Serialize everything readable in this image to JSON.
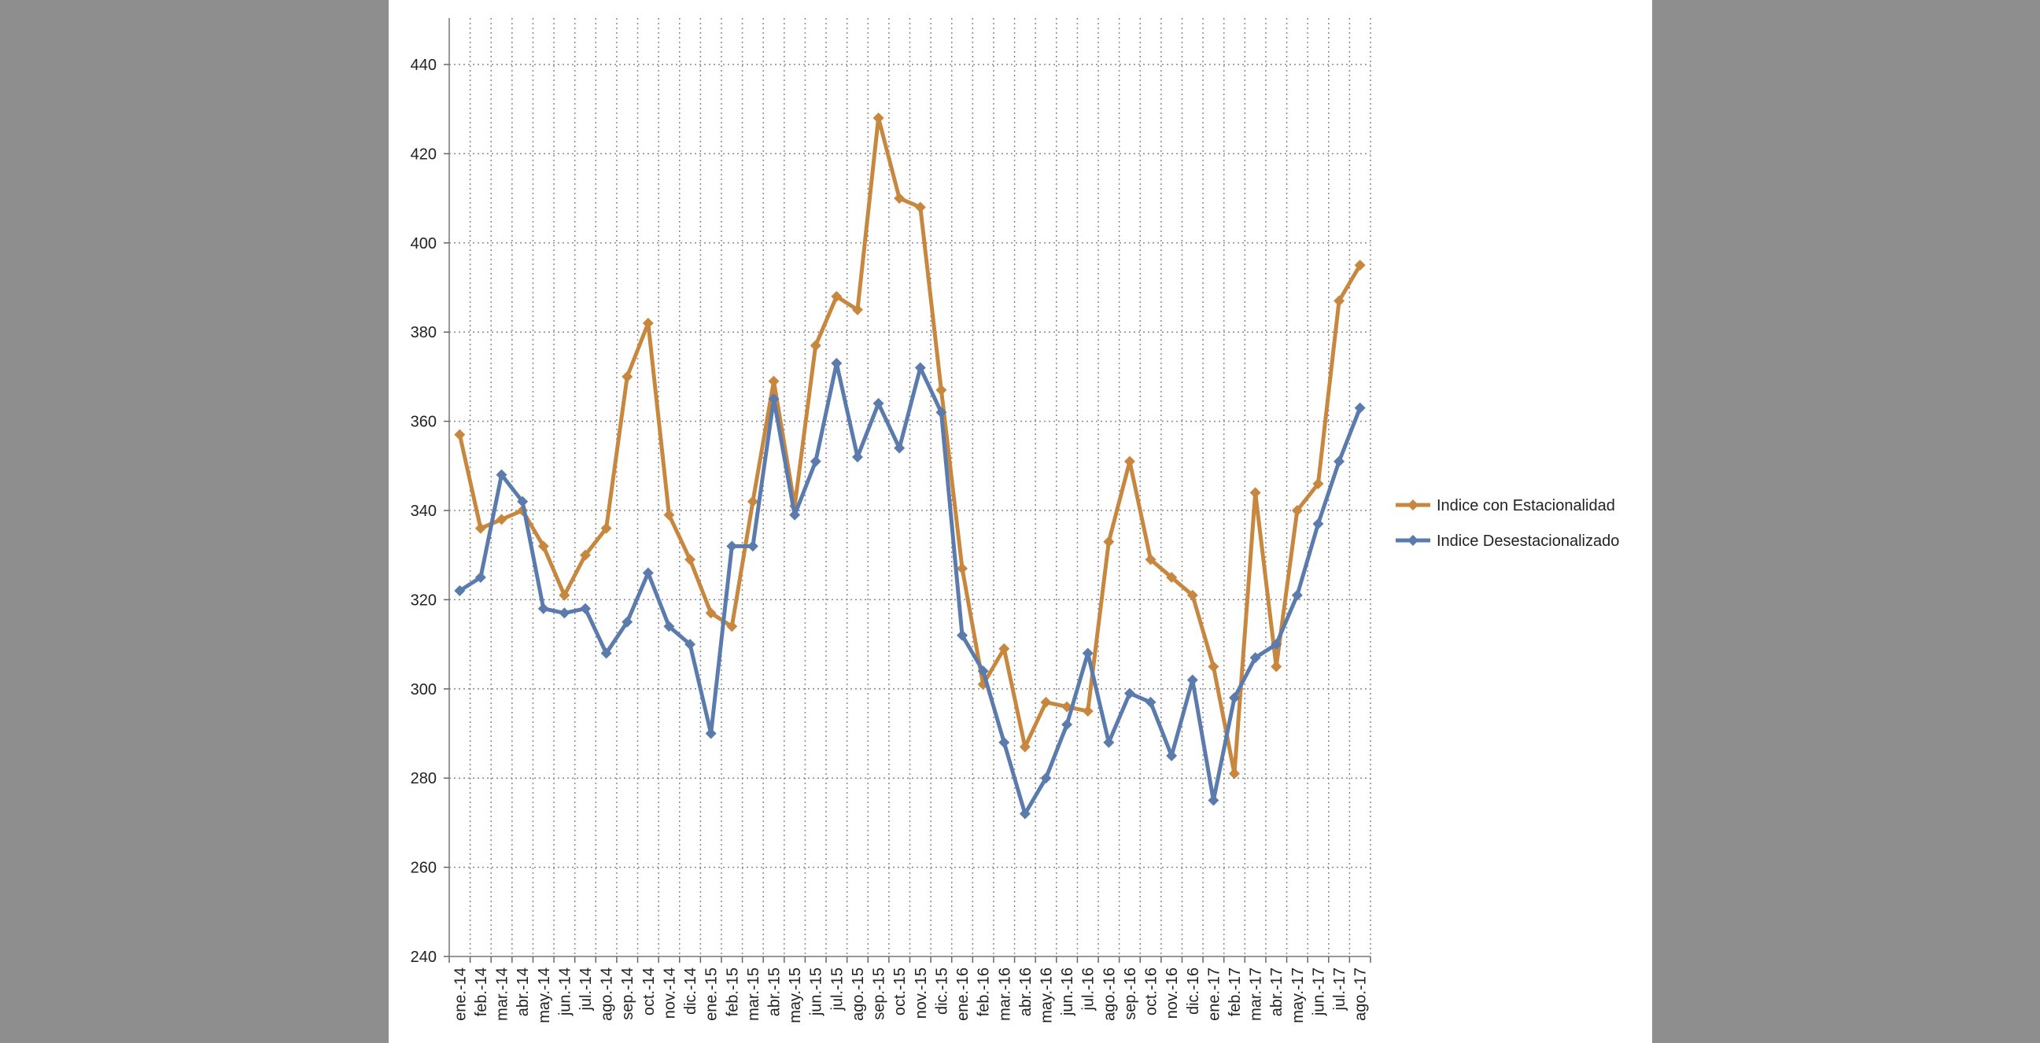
{
  "chart_data": {
    "type": "line",
    "title": "",
    "xlabel": "",
    "ylabel": "",
    "ylim": [
      240,
      440
    ],
    "y_ticks": [
      240,
      260,
      280,
      300,
      320,
      340,
      360,
      380,
      400,
      420,
      440
    ],
    "grid": "dotted, both axes",
    "legend_position": "right",
    "categories": [
      "ene.-14",
      "feb.-14",
      "mar.-14",
      "abr.-14",
      "may.-14",
      "jun.-14",
      "jul.-14",
      "ago.-14",
      "sep.-14",
      "oct.-14",
      "nov.-14",
      "dic.-14",
      "ene.-15",
      "feb.-15",
      "mar.-15",
      "abr.-15",
      "may.-15",
      "jun.-15",
      "jul.-15",
      "ago.-15",
      "sep.-15",
      "oct.-15",
      "nov.-15",
      "dic.-15",
      "ene.-16",
      "feb.-16",
      "mar.-16",
      "abr.-16",
      "may.-16",
      "jun.-16",
      "jul.-16",
      "ago.-16",
      "sep.-16",
      "oct.-16",
      "nov.-16",
      "dic.-16",
      "ene.-17",
      "feb.-17",
      "mar.-17",
      "abr.-17",
      "may.-17",
      "jun.-17",
      "jul.-17",
      "ago.-17"
    ],
    "series": [
      {
        "name": "Indice con Estacionalidad",
        "color": "#c8873f",
        "values": [
          357,
          336,
          338,
          340,
          332,
          321,
          330,
          336,
          370,
          382,
          339,
          329,
          317,
          314,
          342,
          369,
          341,
          377,
          388,
          385,
          428,
          410,
          408,
          367,
          327,
          301,
          309,
          287,
          297,
          296,
          295,
          333,
          351,
          329,
          325,
          321,
          305,
          281,
          344,
          305,
          340,
          346,
          387,
          395
        ]
      },
      {
        "name": "Indice Desestacionalizado",
        "color": "#5b7bad",
        "values": [
          322,
          325,
          348,
          342,
          318,
          317,
          318,
          308,
          315,
          326,
          314,
          310,
          290,
          332,
          332,
          365,
          339,
          351,
          373,
          352,
          364,
          354,
          372,
          362,
          312,
          304,
          288,
          272,
          280,
          292,
          308,
          288,
          299,
          297,
          285,
          302,
          275,
          298,
          307,
          310,
          321,
          337,
          351,
          363
        ]
      }
    ]
  }
}
